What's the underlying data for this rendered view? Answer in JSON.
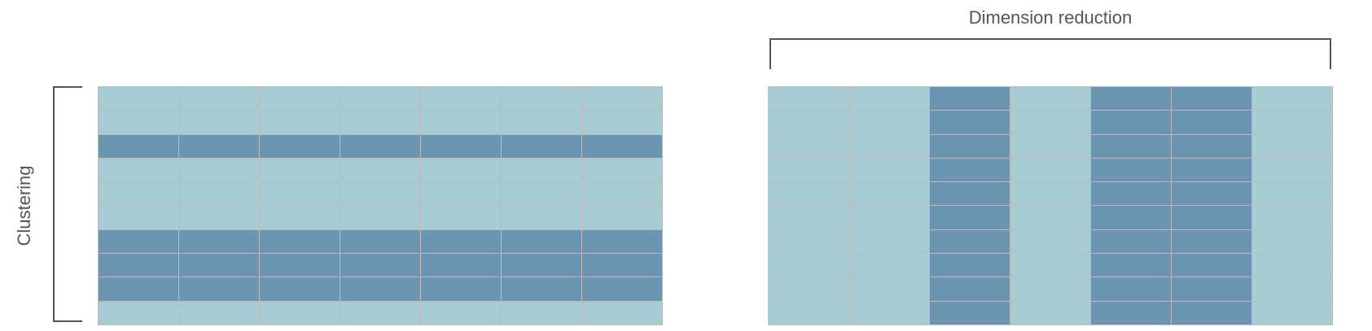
{
  "labels": {
    "clustering": "Clustering",
    "dimension_reduction": "Dimension reduction"
  },
  "colors": {
    "light": "#a6cbd3",
    "dark": "#6c95b2",
    "grid_line": "#bcbcbc",
    "bracket": "#555555"
  },
  "clustering_grid": {
    "rows": 10,
    "cols": 7,
    "highlighted_rows": [
      2,
      6,
      7,
      8
    ]
  },
  "dimension_grid": {
    "rows": 10,
    "cols": 7,
    "highlighted_cols": [
      2,
      4,
      5
    ]
  }
}
